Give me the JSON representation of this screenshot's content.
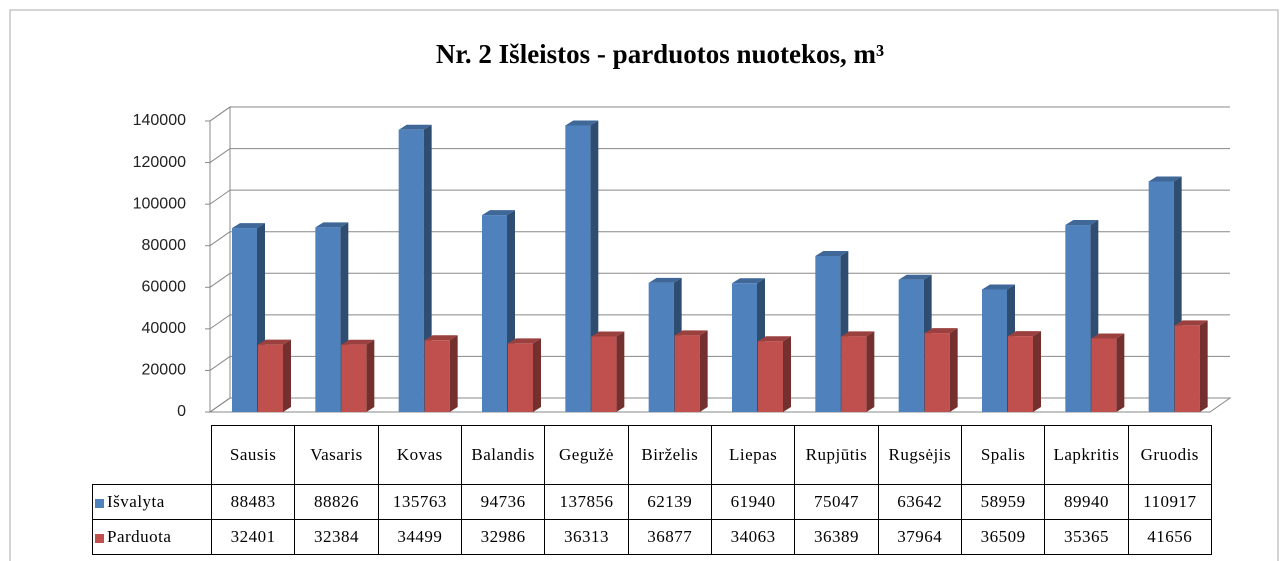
{
  "chart_data": {
    "type": "bar3d",
    "title": "Nr. 2  Išleistos - parduotos nuotekos,  m³",
    "categories": [
      "Sausis",
      "Vasaris",
      "Kovas",
      "Balandis",
      "Gegužė",
      "Birželis",
      "Liepas",
      "Rupjūtis",
      "Rugsėjis",
      "Spalis",
      "Lapkritis",
      "Gruodis"
    ],
    "series": [
      {
        "name": "Išvalyta",
        "color": "#4f81bd",
        "values": [
          88483,
          88826,
          135763,
          94736,
          137856,
          62139,
          61940,
          75047,
          63642,
          58959,
          89940,
          110917
        ]
      },
      {
        "name": "Parduota",
        "color": "#c0504d",
        "values": [
          32401,
          32384,
          34499,
          32986,
          36313,
          36877,
          34063,
          36389,
          37964,
          36509,
          35365,
          41656
        ]
      }
    ],
    "ylim": [
      0,
      140000
    ],
    "yticks": [
      0,
      20000,
      40000,
      60000,
      80000,
      100000,
      120000,
      140000
    ],
    "grid": true
  }
}
